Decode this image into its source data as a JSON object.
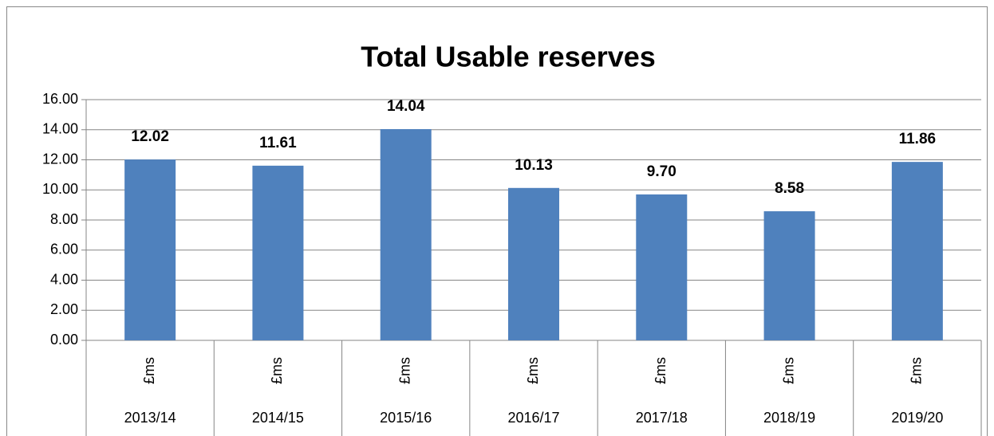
{
  "chart_data": {
    "type": "bar",
    "title": "Total Usable reserves",
    "categories": [
      "2013/14",
      "2014/15",
      "2015/16",
      "2016/17",
      "2017/18",
      "2018/19",
      "2019/20"
    ],
    "sub_categories": [
      "£ms",
      "£ms",
      "£ms",
      "£ms",
      "£ms",
      "£ms",
      "£ms"
    ],
    "values": [
      12.02,
      11.61,
      14.04,
      10.13,
      9.7,
      8.58,
      11.86
    ],
    "value_labels": [
      "12.02",
      "11.61",
      "14.04",
      "10.13",
      "9.70",
      "8.58",
      "11.86"
    ],
    "color": "#4f81bd",
    "ylim": [
      0,
      16
    ],
    "yticks": [
      {
        "value": 0,
        "label": "0.00"
      },
      {
        "value": 2,
        "label": "2.00"
      },
      {
        "value": 4,
        "label": "4.00"
      },
      {
        "value": 6,
        "label": "6.00"
      },
      {
        "value": 8,
        "label": "8.00"
      },
      {
        "value": 10,
        "label": "10.00"
      },
      {
        "value": 12,
        "label": "12.00"
      },
      {
        "value": 14,
        "label": "14.00"
      },
      {
        "value": 16,
        "label": "16.00"
      }
    ],
    "grid": true
  }
}
